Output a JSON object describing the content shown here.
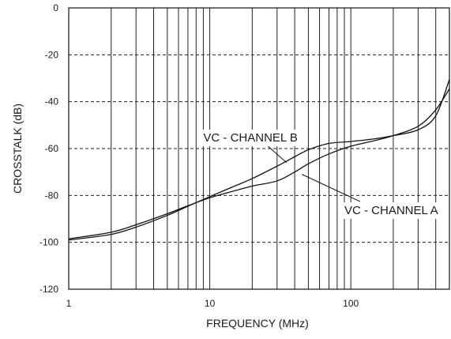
{
  "chart_data": {
    "type": "line",
    "xlabel": "FREQUENCY (MHz)",
    "ylabel": "CROSSTALK (dB)",
    "x_scale": "log",
    "xlim": [
      1,
      500
    ],
    "ylim": [
      -120,
      0
    ],
    "x_ticks": [
      1,
      10,
      100
    ],
    "x_tick_labels": [
      "1",
      "10",
      "100"
    ],
    "y_ticks": [
      0,
      -20,
      -40,
      -60,
      -80,
      -100,
      -120
    ],
    "y_tick_labels": [
      "0",
      "-20",
      "-40",
      "-60",
      "-80",
      "-100",
      "-120"
    ],
    "grid": {
      "vertical": "solid, log minor lines",
      "horizontal": "dashed"
    },
    "series": [
      {
        "name": "VC - CHANNEL A",
        "x": [
          1,
          2,
          3,
          5,
          7,
          10,
          15,
          20,
          30,
          40,
          50,
          70,
          100,
          150,
          200,
          300,
          400,
          500
        ],
        "y": [
          -98.5,
          -95.7,
          -92.5,
          -87.8,
          -84.4,
          -81.0,
          -78.0,
          -76.0,
          -73.8,
          -70.0,
          -66.5,
          -62.3,
          -59.0,
          -56.5,
          -54.5,
          -50.5,
          -43.5,
          -34.5
        ]
      },
      {
        "name": "VC - CHANNEL B",
        "x": [
          1,
          2,
          3,
          5,
          7,
          10,
          15,
          20,
          30,
          40,
          50,
          70,
          100,
          150,
          200,
          300,
          400,
          500
        ],
        "y": [
          -99.0,
          -96.6,
          -93.5,
          -88.5,
          -84.6,
          -80.5,
          -76.0,
          -72.8,
          -67.5,
          -63.5,
          -60.5,
          -57.8,
          -57.0,
          -55.8,
          -54.5,
          -52.0,
          -46.0,
          -30.5
        ]
      }
    ],
    "annotations": [
      {
        "text": "VC - CHANNEL B",
        "target_series": "VC - CHANNEL B",
        "label_x": 9,
        "label_y": -57,
        "arrow_x": 35,
        "arrow_y": -66
      },
      {
        "text": "VC - CHANNEL A",
        "target_series": "VC - CHANNEL A",
        "label_x": 90,
        "label_y": -88,
        "arrow_x": 45,
        "arrow_y": -71
      }
    ]
  }
}
